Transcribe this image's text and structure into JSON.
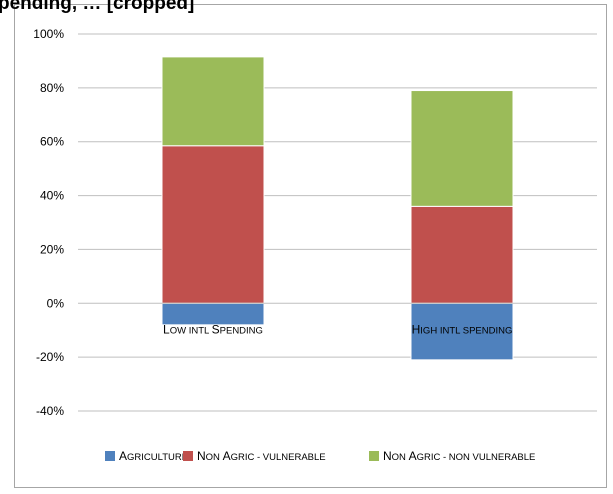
{
  "chart_data": {
    "type": "bar",
    "stacked": true,
    "title": "pending, … [cropped]",
    "categories": [
      "Low intl Spending",
      "High intl spending"
    ],
    "series": [
      {
        "name": "Agriculture",
        "color": "#4f81bd",
        "values": [
          -8,
          -21
        ]
      },
      {
        "name": "Non Agric - vulnerable",
        "color": "#c0504d",
        "values": [
          58.5,
          36
        ]
      },
      {
        "name": "Non Agric - non vulnerable",
        "color": "#9bbb59",
        "values": [
          33,
          43
        ]
      }
    ],
    "ylim": [
      -40,
      100
    ],
    "yticks": [
      100,
      80,
      60,
      40,
      20,
      0,
      -20,
      -40
    ],
    "ytick_labels": [
      "100%",
      "80%",
      "60%",
      "40%",
      "20%",
      "0%",
      "-20%",
      "-40%"
    ],
    "grid": true,
    "legend_position": "bottom"
  }
}
